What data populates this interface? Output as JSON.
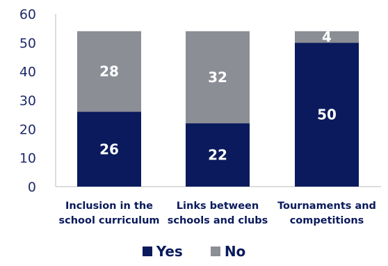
{
  "chart_data": {
    "type": "bar",
    "stacked": true,
    "categories": [
      [
        "Inclusion in the",
        "school curriculum"
      ],
      [
        "Links between",
        "schools and clubs"
      ],
      [
        "Tournaments and",
        "competitions"
      ]
    ],
    "series": [
      {
        "name": "Yes",
        "values": [
          26,
          22,
          50
        ],
        "color": "#0a1a5c"
      },
      {
        "name": "No",
        "values": [
          28,
          32,
          4
        ],
        "color": "#8c8e96"
      }
    ],
    "data_labels": [
      [
        "26",
        "22",
        "50"
      ],
      [
        "28",
        "32",
        "4"
      ]
    ],
    "y_ticks": [
      "0",
      "10",
      "20",
      "30",
      "40",
      "50",
      "60"
    ],
    "ylim": [
      0,
      60
    ],
    "grid": false,
    "legend_position": "bottom"
  }
}
